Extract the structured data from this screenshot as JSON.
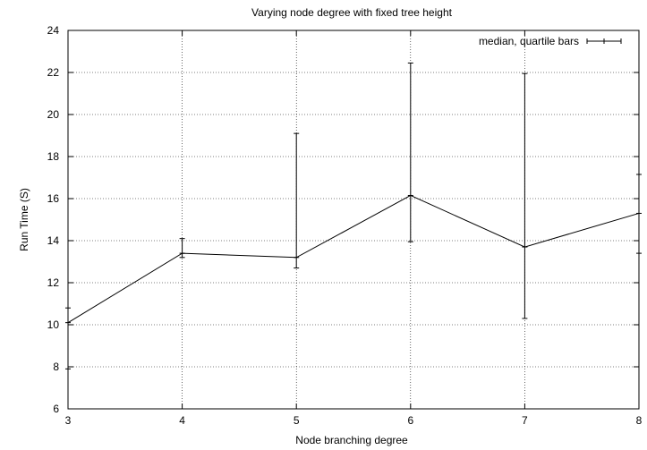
{
  "chart_data": {
    "type": "line",
    "title": "Varying node degree with fixed tree height",
    "xlabel": "Node branching degree",
    "ylabel": "Run Time (S)",
    "xlim": [
      3,
      8
    ],
    "ylim": [
      6,
      24
    ],
    "x_ticks": [
      "3",
      "4",
      "5",
      "6",
      "7",
      "8"
    ],
    "y_ticks": [
      "6",
      "8",
      "10",
      "12",
      "14",
      "16",
      "18",
      "20",
      "22",
      "24"
    ],
    "grid": true,
    "legend_position": "top-right",
    "series": [
      {
        "name": "median, quartile bars",
        "points": [
          {
            "x": 3,
            "y": 10.1,
            "low": 7.9,
            "high": 10.8
          },
          {
            "x": 4,
            "y": 13.4,
            "low": 13.2,
            "high": 14.1
          },
          {
            "x": 5,
            "y": 13.2,
            "low": 12.7,
            "high": 19.1
          },
          {
            "x": 6,
            "y": 16.15,
            "low": 13.95,
            "high": 22.45
          },
          {
            "x": 7,
            "y": 13.7,
            "low": 10.3,
            "high": 21.95
          },
          {
            "x": 8,
            "y": 15.3,
            "low": 13.4,
            "high": 17.15
          }
        ],
        "color": "#000000"
      }
    ]
  }
}
